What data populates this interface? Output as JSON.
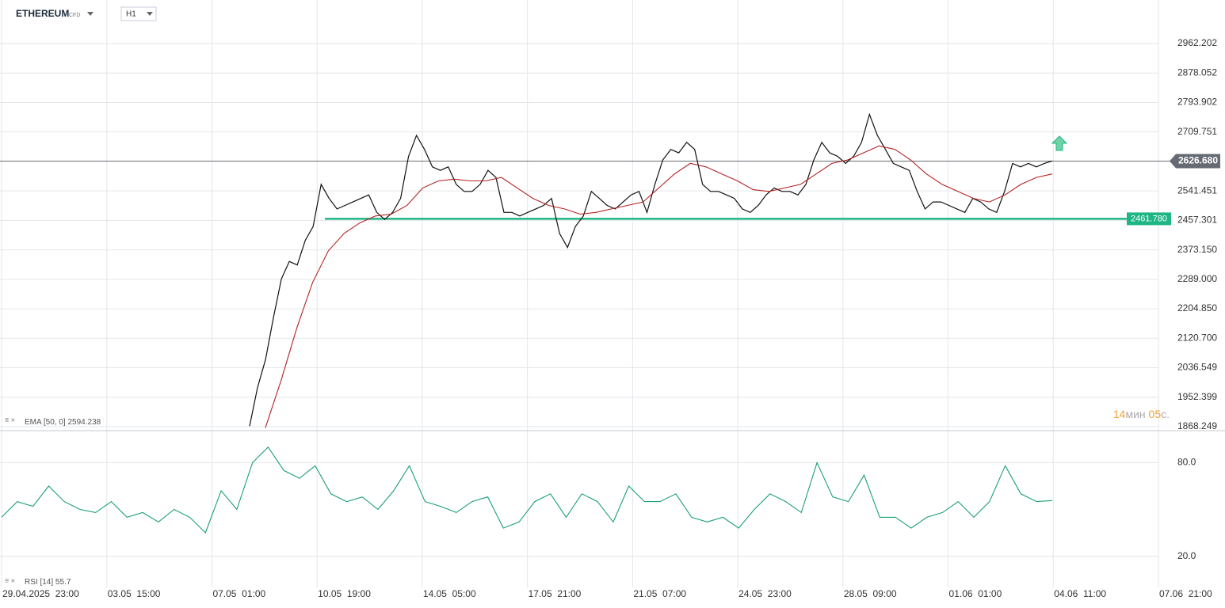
{
  "header": {
    "instrument": "ETHEREUM",
    "instrument_type": "CFD",
    "timeframe": "H1"
  },
  "time_axis": [
    "29.04.2025  23:00",
    "03.05  15:00",
    "07.05  01:00",
    "10.05  19:00",
    "14.05  05:00",
    "17.05  21:00",
    "21.05  07:00",
    "24.05  23:00",
    "28.05  09:00",
    "01.06  01:00",
    "04.06  11:00",
    "07.06  21:00"
  ],
  "countdown": {
    "minutes": "14",
    "minutes_unit": "мин",
    "seconds": "05",
    "seconds_unit": "с."
  },
  "chart_data": [
    {
      "type": "line",
      "ylim": [
        1859.2,
        3086.5
      ],
      "yticks": [
        {
          "value": 1868.249,
          "label": "1868.249"
        },
        1952.399,
        2036.549,
        {
          "value": 2120.7,
          "label": "2120.700"
        },
        {
          "value": 2204.85,
          "label": "2204.850"
        },
        {
          "value": 2289,
          "label": "2289.000"
        },
        {
          "value": 2373.15,
          "label": "2373.150"
        },
        2457.301,
        2541.451,
        2709.751,
        2793.902,
        2878.052,
        2962.202
      ],
      "grid": true,
      "current_price": {
        "value": 2626.68,
        "label": "2626.680",
        "color": "#666b73"
      },
      "support_line": {
        "value": 2461.78,
        "label": "2461.780",
        "color": "#1fb584"
      },
      "series": [
        {
          "color": "#111111",
          "values": [
            1870,
            1980,
            2060,
            2180,
            2290,
            2340,
            2330,
            2400,
            2440,
            2560,
            2520,
            2490,
            2500,
            2510,
            2520,
            2530,
            2480,
            2460,
            2480,
            2520,
            2640,
            2700,
            2660,
            2610,
            2600,
            2610,
            2560,
            2540,
            2540,
            2560,
            2600,
            2580,
            2480,
            2480,
            2470,
            2480,
            2490,
            2500,
            2520,
            2420,
            2380,
            2440,
            2470,
            2540,
            2520,
            2500,
            2490,
            2510,
            2530,
            2540,
            2480,
            2560,
            2630,
            2660,
            2650,
            2680,
            2660,
            2560,
            2540,
            2540,
            2530,
            2520,
            2490,
            2480,
            2500,
            2530,
            2550,
            2540,
            2540,
            2530,
            2560,
            2630,
            2680,
            2650,
            2640,
            2620,
            2640,
            2680,
            2760,
            2700,
            2660,
            2620,
            2610,
            2600,
            2540,
            2490,
            2510,
            2510,
            2500,
            2490,
            2480,
            2520,
            2510,
            2490,
            2480,
            2540,
            2620,
            2610,
            2620,
            2610,
            2620,
            2627
          ]
        },
        {
          "name": "EMA [50, 0]",
          "last_value": 2594.238,
          "color": "#b22222",
          "values": [
            null,
            1865,
            2000,
            2150,
            2280,
            2370,
            2420,
            2450,
            2470,
            2475,
            2500,
            2550,
            2570,
            2575,
            2570,
            2570,
            2580,
            2550,
            2520,
            2500,
            2490,
            2475,
            2480,
            2490,
            2500,
            2510,
            2550,
            2590,
            2620,
            2610,
            2590,
            2570,
            2545,
            2540,
            2550,
            2560,
            2590,
            2620,
            2630,
            2650,
            2670,
            2660,
            2630,
            2590,
            2560,
            2540,
            2520,
            2510,
            2530,
            2560,
            2580,
            2590
          ]
        }
      ]
    },
    {
      "type": "line",
      "ylim": [
        0,
        100
      ],
      "yticks": [
        {
          "value": 20,
          "label": "20.0"
        },
        {
          "value": 80,
          "label": "80.0"
        }
      ],
      "series": [
        {
          "name": "RSI [14]",
          "last_value": 55.7,
          "color": "#1a9e7a",
          "values": [
            45,
            55,
            52,
            65,
            55,
            50,
            48,
            55,
            45,
            48,
            42,
            50,
            45,
            35,
            62,
            50,
            80,
            90,
            75,
            70,
            78,
            60,
            55,
            58,
            50,
            62,
            78,
            55,
            52,
            48,
            55,
            58,
            38,
            42,
            55,
            60,
            45,
            60,
            55,
            42,
            65,
            55,
            55,
            60,
            45,
            42,
            45,
            38,
            50,
            60,
            55,
            48,
            80,
            58,
            55,
            72,
            45,
            45,
            38,
            45,
            48,
            55,
            45,
            55,
            78,
            60,
            55,
            55.7
          ]
        }
      ]
    }
  ]
}
